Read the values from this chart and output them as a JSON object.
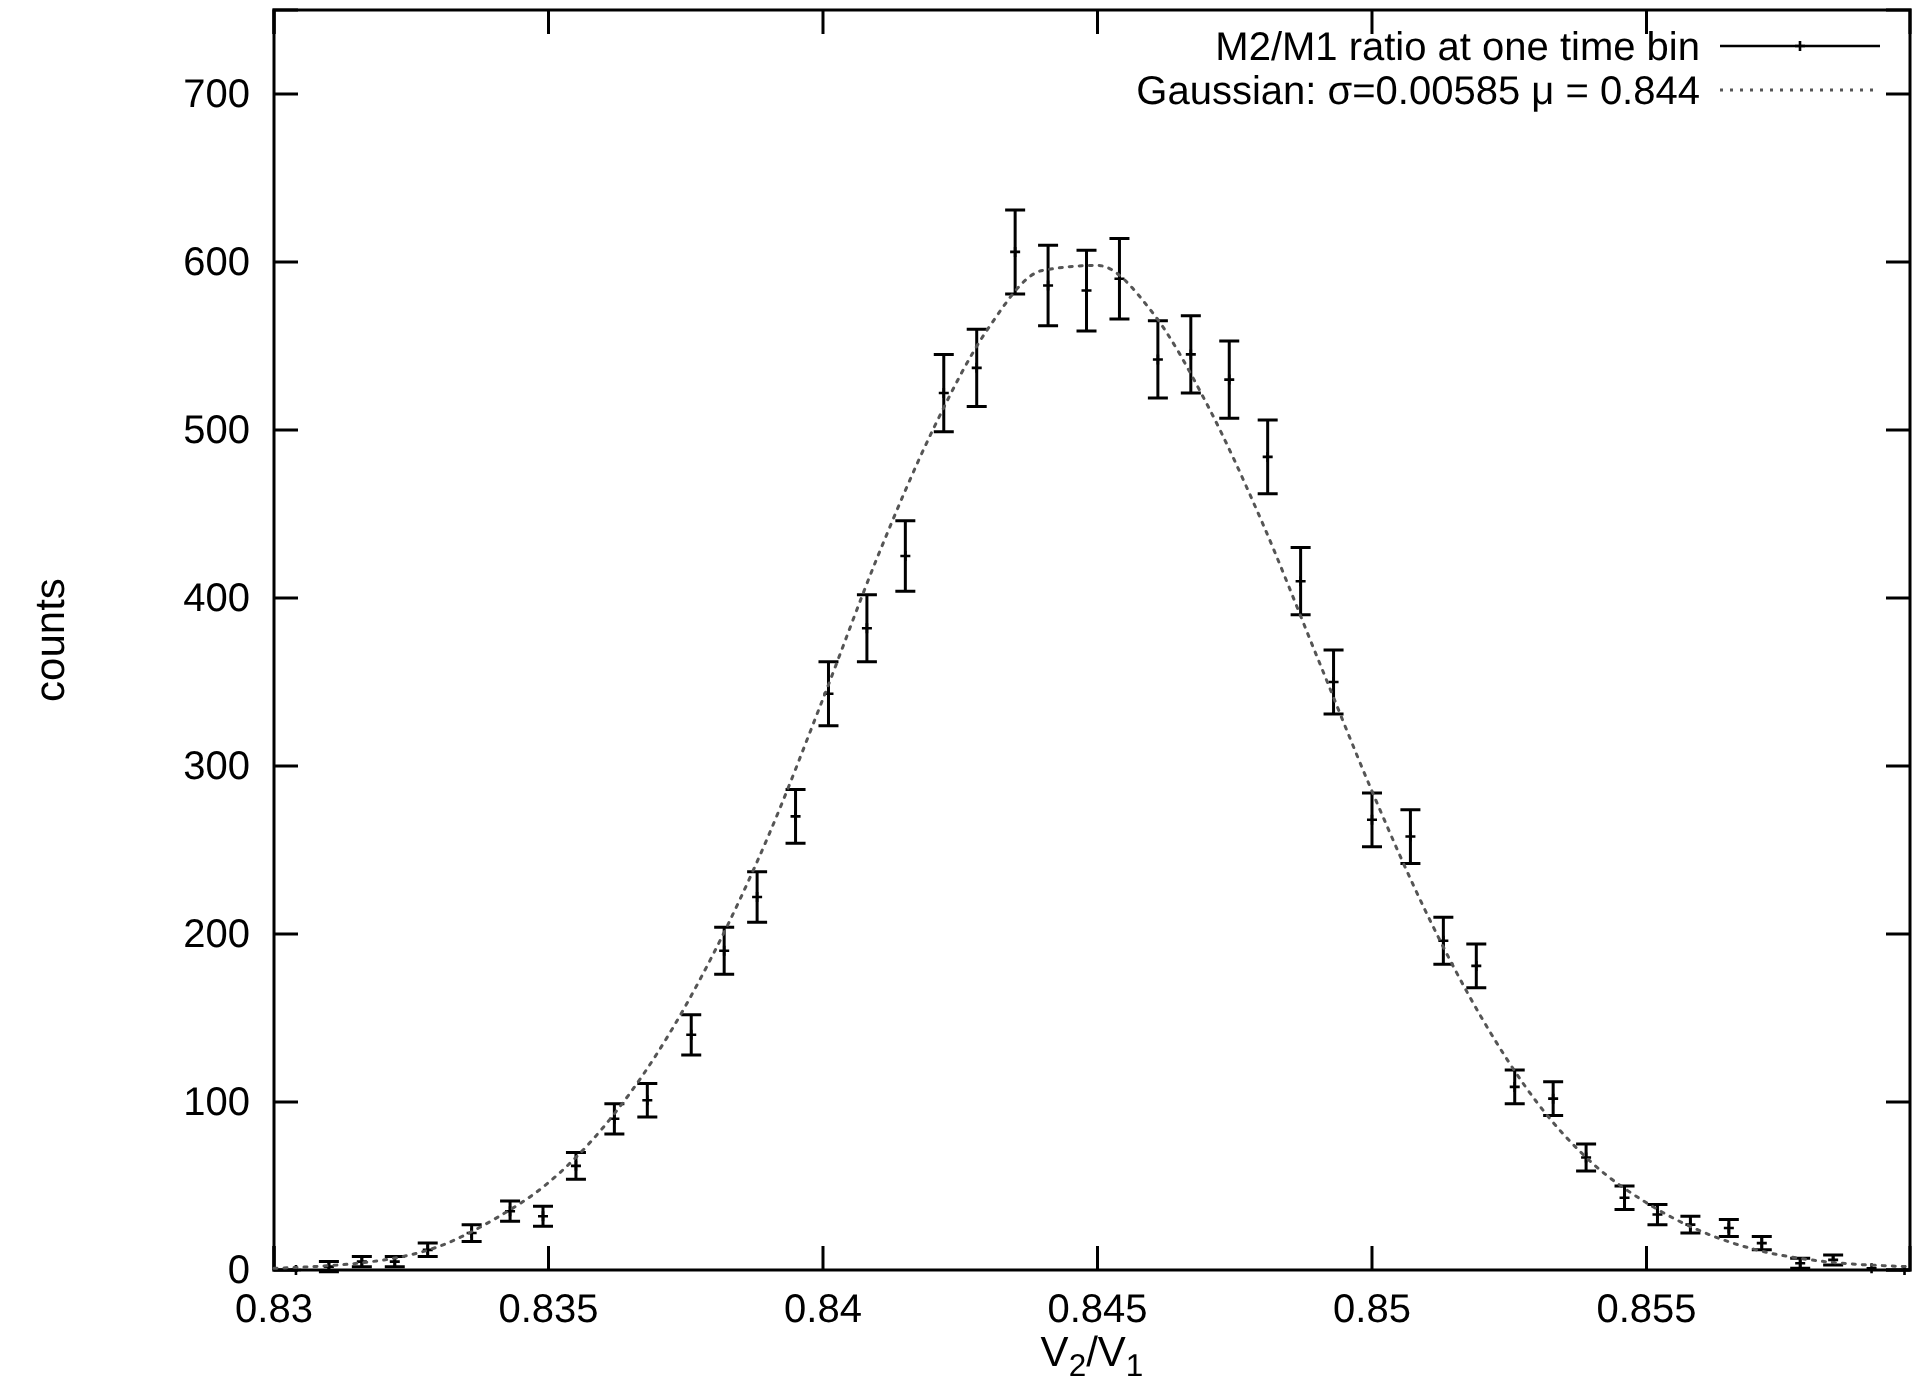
{
  "chart_data": {
    "type": "scatter",
    "xlabel": "V$_{2}$/V$_{1}$",
    "ylabel": "counts",
    "xlim": [
      0.83,
      0.8598
    ],
    "xticks": [
      {
        "value": 0.83,
        "label": "0.83"
      },
      {
        "value": 0.835,
        "label": "0.835"
      },
      {
        "value": 0.84,
        "label": "0.84"
      },
      {
        "value": 0.845,
        "label": "0.845"
      },
      {
        "value": 0.85,
        "label": "0.85"
      },
      {
        "value": 0.855,
        "label": "0.855"
      }
    ],
    "ylim": [
      0,
      750
    ],
    "yticks": [
      0,
      100,
      200,
      300,
      400,
      500,
      600,
      700
    ],
    "legend": "top right",
    "grid": false,
    "series": [
      {
        "name": "M2/M1 ratio at one time bin",
        "color": "#000000",
        "marker": "cross",
        "x": [
          0.8304,
          0.831,
          0.8316,
          0.8322,
          0.8328,
          0.8336,
          0.8343,
          0.8349,
          0.8355,
          0.8362,
          0.8368,
          0.8376,
          0.8382,
          0.8388,
          0.8395,
          0.8401,
          0.8408,
          0.8415,
          0.8422,
          0.8428,
          0.8435,
          0.8441,
          0.8448,
          0.8454,
          0.8461,
          0.8467,
          0.8474,
          0.8481,
          0.8487,
          0.8493,
          0.85,
          0.8507,
          0.8513,
          0.8519,
          0.8526,
          0.8533,
          0.8539,
          0.8546,
          0.8552,
          0.8558,
          0.8565,
          0.8571,
          0.8578,
          0.8584,
          0.8591,
          0.8597
        ],
        "values": [
          0,
          2,
          5,
          5,
          12,
          22,
          35,
          32,
          62,
          90,
          101,
          140,
          190,
          222,
          270,
          343,
          382,
          425,
          522,
          537,
          606,
          586,
          583,
          590,
          542,
          545,
          530,
          484,
          410,
          350,
          268,
          258,
          196,
          181,
          109,
          102,
          67,
          43,
          33,
          27,
          25,
          16,
          4,
          6,
          1,
          0
        ],
        "errors": [
          null,
          3,
          3,
          3,
          4,
          5,
          6,
          6,
          8,
          9,
          10,
          12,
          14,
          15,
          16,
          19,
          20,
          21,
          23,
          23,
          25,
          24,
          24,
          24,
          23,
          23,
          23,
          22,
          20,
          19,
          16,
          16,
          14,
          13,
          10,
          10,
          8,
          7,
          6,
          5,
          5,
          4,
          3,
          3,
          null,
          null
        ]
      },
      {
        "name": "Gaussian: σ=0.00585  μ = 0.844",
        "type": "line",
        "color": "#555555",
        "line_style": "dotted",
        "x": [
          0.83,
          0.832,
          0.833,
          0.834,
          0.835,
          0.836,
          0.837,
          0.838,
          0.839,
          0.84,
          0.841,
          0.842,
          0.843,
          0.844,
          0.845,
          0.846,
          0.847,
          0.848,
          0.849,
          0.85,
          0.851,
          0.852,
          0.853,
          0.854,
          0.855,
          0.856,
          0.857,
          0.858,
          0.8598
        ],
        "values": [
          1,
          6,
          14,
          30,
          52,
          85,
          130,
          188,
          258,
          340,
          425,
          500,
          560,
          595,
          598,
          570,
          515,
          445,
          365,
          285,
          212,
          150,
          100,
          64,
          40,
          23,
          12,
          6,
          2
        ]
      }
    ]
  }
}
